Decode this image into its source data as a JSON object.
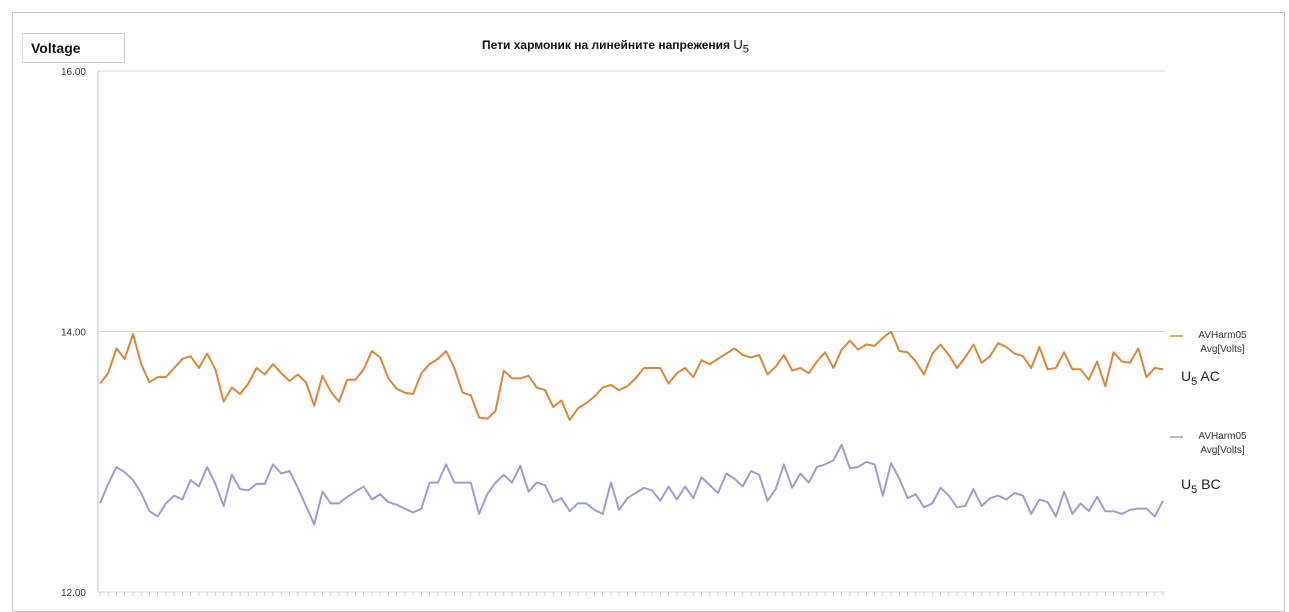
{
  "chart_data": {
    "type": "line",
    "title_main": "Пети хармоник на  линейните  напрежения",
    "title_symbol": "U",
    "title_subscript": "5",
    "ylabel": "Voltage",
    "xlabel": "",
    "ylim": [
      12.0,
      16.0
    ],
    "yticks": [
      "16.00",
      "14.00",
      "12.00"
    ],
    "grid": true,
    "legend_position": "right",
    "series": [
      {
        "name": "AVHarm05 Avg[Volts]",
        "tag_symbol": "U",
        "tag_subscript": "5",
        "tag_suffix": "AC",
        "color": "#d4893b",
        "values": [
          13.6,
          13.68,
          13.87,
          13.79,
          13.98,
          13.75,
          13.61,
          13.65,
          13.65,
          13.72,
          13.79,
          13.81,
          13.72,
          13.83,
          13.71,
          13.46,
          13.57,
          13.52,
          13.6,
          13.72,
          13.67,
          13.75,
          13.68,
          13.62,
          13.67,
          13.61,
          13.43,
          13.66,
          13.54,
          13.46,
          13.63,
          13.63,
          13.71,
          13.85,
          13.8,
          13.64,
          13.56,
          13.53,
          13.52,
          13.68,
          13.75,
          13.79,
          13.85,
          13.72,
          13.53,
          13.51,
          13.34,
          13.33,
          13.39,
          13.7,
          13.64,
          13.64,
          13.66,
          13.57,
          13.55,
          13.42,
          13.47,
          13.32,
          13.41,
          13.45,
          13.5,
          13.57,
          13.59,
          13.55,
          13.58,
          13.64,
          13.72,
          13.72,
          13.72,
          13.6,
          13.68,
          13.72,
          13.65,
          13.78,
          13.75,
          13.79,
          13.83,
          13.87,
          13.82,
          13.8,
          13.82,
          13.67,
          13.73,
          13.82,
          13.7,
          13.72,
          13.68,
          13.77,
          13.84,
          13.72,
          13.86,
          13.93,
          13.86,
          13.9,
          13.89,
          13.95,
          14.0,
          13.85,
          13.84,
          13.77,
          13.67,
          13.83,
          13.9,
          13.82,
          13.72,
          13.8,
          13.9,
          13.76,
          13.81,
          13.91,
          13.88,
          13.83,
          13.81,
          13.72,
          13.88,
          13.71,
          13.72,
          13.84,
          13.71,
          13.71,
          13.63,
          13.77,
          13.58,
          13.84,
          13.77,
          13.76,
          13.87,
          13.65,
          13.72,
          13.71
        ]
      },
      {
        "name": "AVHarm05 Avg[Volts]",
        "tag_symbol": "U",
        "tag_subscript": "5",
        "tag_suffix": "BC",
        "color": "#9b9fc8",
        "values": [
          12.68,
          12.83,
          12.96,
          12.92,
          12.86,
          12.76,
          12.62,
          12.58,
          12.68,
          12.74,
          12.71,
          12.86,
          12.81,
          12.96,
          12.83,
          12.66,
          12.9,
          12.79,
          12.78,
          12.83,
          12.83,
          12.98,
          12.91,
          12.93,
          12.8,
          12.66,
          12.52,
          12.77,
          12.68,
          12.68,
          12.73,
          12.77,
          12.81,
          12.71,
          12.75,
          12.69,
          12.67,
          12.64,
          12.61,
          12.64,
          12.84,
          12.84,
          12.98,
          12.84,
          12.84,
          12.84,
          12.6,
          12.75,
          12.84,
          12.9,
          12.84,
          12.97,
          12.77,
          12.84,
          12.82,
          12.69,
          12.72,
          12.62,
          12.68,
          12.68,
          12.63,
          12.6,
          12.84,
          12.63,
          12.72,
          12.76,
          12.8,
          12.78,
          12.7,
          12.81,
          12.71,
          12.81,
          12.72,
          12.88,
          12.82,
          12.76,
          12.91,
          12.87,
          12.81,
          12.93,
          12.9,
          12.7,
          12.79,
          12.98,
          12.8,
          12.91,
          12.84,
          12.96,
          12.98,
          13.01,
          13.13,
          12.95,
          12.96,
          13.0,
          12.98,
          12.74,
          12.99,
          12.87,
          12.72,
          12.75,
          12.65,
          12.68,
          12.8,
          12.74,
          12.65,
          12.66,
          12.79,
          12.66,
          12.72,
          12.74,
          12.71,
          12.76,
          12.74,
          12.6,
          12.71,
          12.69,
          12.58,
          12.77,
          12.6,
          12.68,
          12.62,
          12.73,
          12.62,
          12.62,
          12.6,
          12.63,
          12.64,
          12.64,
          12.58,
          12.7
        ]
      }
    ]
  }
}
